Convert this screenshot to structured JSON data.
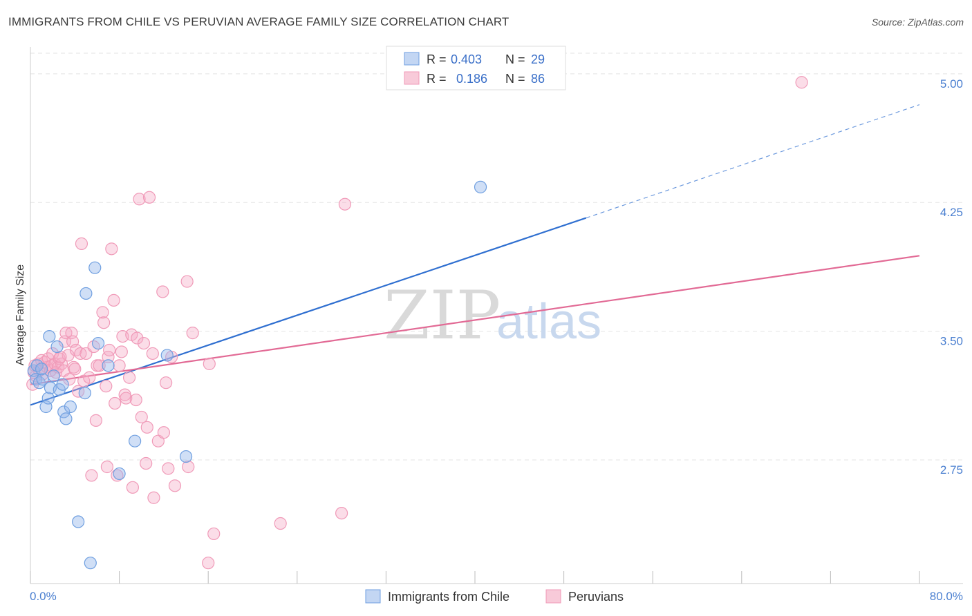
{
  "title": "IMMIGRANTS FROM CHILE VS PERUVIAN AVERAGE FAMILY SIZE CORRELATION CHART",
  "source": "Source: ZipAtlas.com",
  "watermark": {
    "zip": "ZIP",
    "atlas": "atlas"
  },
  "chart_data": {
    "type": "scatter",
    "ylabel": "Average Family Size",
    "xlim": [
      0,
      80
    ],
    "ylim": [
      2.03,
      5.12
    ],
    "y_ticks": [
      2.75,
      3.5,
      4.25,
      5.0
    ],
    "y_tick_labels": [
      "2.75",
      "3.50",
      "4.25",
      "5.00"
    ],
    "x_tick_labels": {
      "min": "0.0%",
      "max": "80.0%"
    },
    "grid": true,
    "legend_position": "top-center",
    "series": [
      {
        "name": "Immigrants from Chile",
        "color": "#6f9fe0",
        "line_color": "#2f6fd0",
        "r_label": "R =",
        "r": "0.403",
        "n_label": "N =",
        "n": "29",
        "trend": {
          "x0": 0,
          "y0": 3.07,
          "x1": 50,
          "y1": 4.16,
          "dash_to_x": 80,
          "dash_to_y": 4.82
        },
        "points": [
          [
            0.3,
            3.27
          ],
          [
            0.5,
            3.22
          ],
          [
            0.8,
            3.2
          ],
          [
            1.1,
            3.22
          ],
          [
            1.4,
            3.06
          ],
          [
            1.6,
            3.11
          ],
          [
            1.7,
            3.47
          ],
          [
            1.8,
            3.17
          ],
          [
            2.1,
            3.24
          ],
          [
            2.4,
            3.41
          ],
          [
            2.6,
            3.16
          ],
          [
            2.9,
            3.19
          ],
          [
            3.0,
            3.03
          ],
          [
            3.2,
            2.99
          ],
          [
            3.6,
            3.06
          ],
          [
            4.3,
            2.39
          ],
          [
            4.9,
            3.14
          ],
          [
            5.0,
            3.72
          ],
          [
            5.4,
            2.15
          ],
          [
            5.8,
            3.87
          ],
          [
            6.1,
            3.43
          ],
          [
            7.0,
            3.3
          ],
          [
            8.0,
            2.67
          ],
          [
            9.4,
            2.86
          ],
          [
            12.3,
            3.36
          ],
          [
            14.0,
            2.77
          ],
          [
            40.5,
            4.34
          ],
          [
            0.6,
            3.3
          ],
          [
            1.0,
            3.28
          ]
        ]
      },
      {
        "name": "Peruvians",
        "color": "#f09ab8",
        "line_color": "#e26a95",
        "r_label": "R =",
        "r": "0.186",
        "n_label": "N =",
        "n": "86",
        "trend": {
          "x0": 0,
          "y0": 3.19,
          "x1": 80,
          "y1": 3.94
        },
        "points": [
          [
            0.2,
            3.19
          ],
          [
            0.3,
            3.26
          ],
          [
            0.4,
            3.3
          ],
          [
            0.5,
            3.24
          ],
          [
            0.7,
            3.31
          ],
          [
            0.8,
            3.27
          ],
          [
            1.0,
            3.33
          ],
          [
            1.1,
            3.25
          ],
          [
            1.3,
            3.32
          ],
          [
            1.5,
            3.29
          ],
          [
            1.6,
            3.34
          ],
          [
            1.8,
            3.27
          ],
          [
            1.9,
            3.3
          ],
          [
            2.0,
            3.37
          ],
          [
            2.2,
            3.31
          ],
          [
            2.3,
            3.26
          ],
          [
            2.5,
            3.29
          ],
          [
            2.6,
            3.34
          ],
          [
            2.8,
            3.31
          ],
          [
            3.0,
            3.27
          ],
          [
            3.1,
            3.44
          ],
          [
            3.2,
            3.49
          ],
          [
            3.4,
            3.36
          ],
          [
            3.5,
            3.22
          ],
          [
            3.7,
            3.49
          ],
          [
            3.8,
            3.44
          ],
          [
            3.9,
            3.29
          ],
          [
            4.1,
            3.39
          ],
          [
            4.3,
            3.15
          ],
          [
            4.5,
            3.37
          ],
          [
            4.6,
            4.01
          ],
          [
            4.8,
            3.21
          ],
          [
            5.0,
            3.37
          ],
          [
            5.3,
            3.23
          ],
          [
            5.5,
            2.66
          ],
          [
            5.7,
            3.41
          ],
          [
            5.9,
            2.98
          ],
          [
            6.0,
            3.3
          ],
          [
            6.2,
            3.3
          ],
          [
            6.5,
            3.61
          ],
          [
            6.6,
            3.55
          ],
          [
            6.8,
            3.18
          ],
          [
            6.9,
            2.71
          ],
          [
            7.0,
            3.35
          ],
          [
            7.1,
            3.39
          ],
          [
            7.3,
            3.98
          ],
          [
            7.5,
            3.68
          ],
          [
            7.6,
            3.08
          ],
          [
            7.8,
            2.66
          ],
          [
            8.0,
            3.3
          ],
          [
            8.2,
            3.38
          ],
          [
            8.3,
            3.47
          ],
          [
            8.5,
            3.13
          ],
          [
            8.6,
            3.11
          ],
          [
            8.9,
            3.23
          ],
          [
            9.1,
            3.48
          ],
          [
            9.2,
            2.59
          ],
          [
            9.5,
            3.1
          ],
          [
            9.6,
            3.46
          ],
          [
            9.8,
            4.27
          ],
          [
            10.0,
            3.0
          ],
          [
            10.2,
            3.43
          ],
          [
            10.4,
            2.73
          ],
          [
            10.5,
            2.94
          ],
          [
            10.7,
            4.28
          ],
          [
            11.0,
            3.37
          ],
          [
            11.1,
            2.53
          ],
          [
            11.5,
            2.86
          ],
          [
            11.9,
            3.73
          ],
          [
            12.0,
            2.91
          ],
          [
            12.2,
            3.2
          ],
          [
            12.4,
            2.7
          ],
          [
            12.7,
            3.35
          ],
          [
            13.0,
            2.6
          ],
          [
            14.1,
            3.79
          ],
          [
            14.2,
            2.71
          ],
          [
            14.6,
            3.49
          ],
          [
            16.0,
            2.15
          ],
          [
            16.5,
            2.32
          ],
          [
            16.1,
            3.31
          ],
          [
            22.5,
            2.38
          ],
          [
            28.0,
            2.44
          ],
          [
            28.3,
            4.24
          ],
          [
            69.4,
            4.95
          ],
          [
            2.7,
            3.35
          ],
          [
            4.0,
            3.28
          ]
        ]
      }
    ]
  }
}
